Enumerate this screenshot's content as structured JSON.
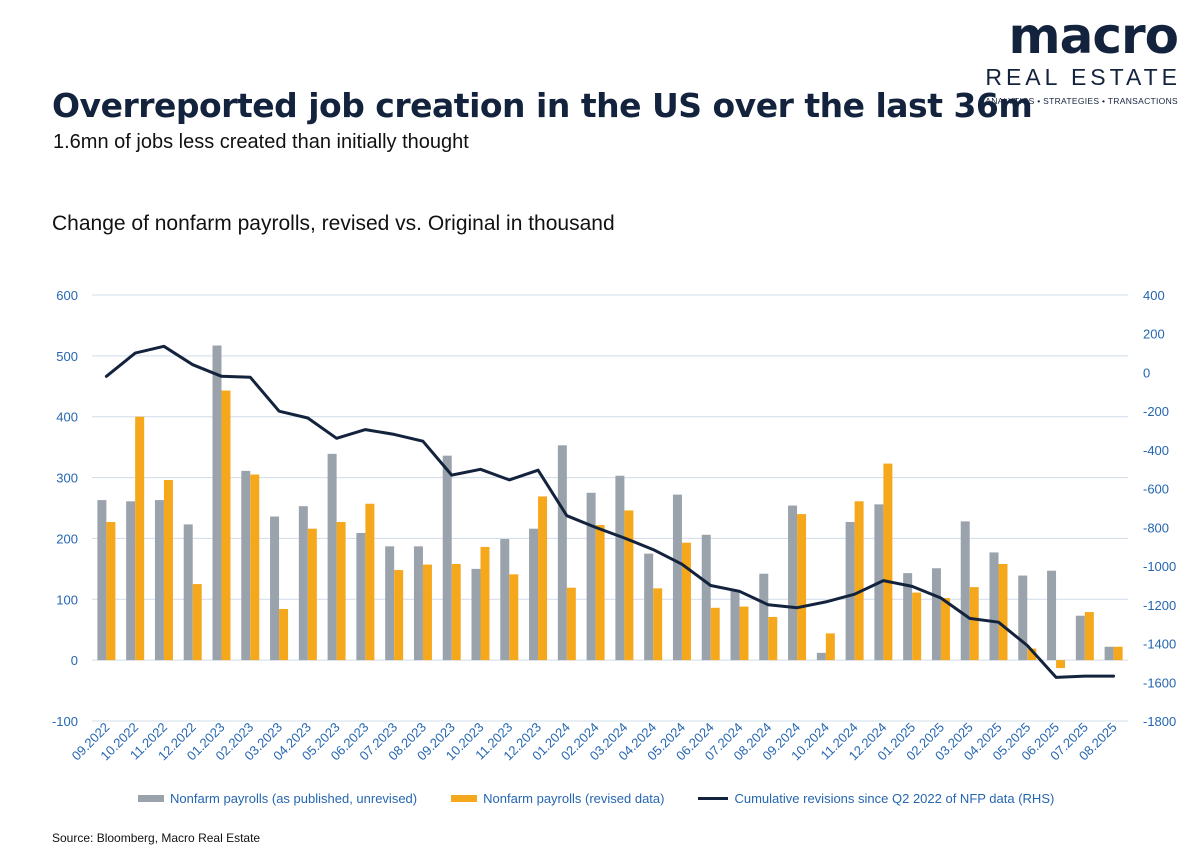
{
  "header": {
    "title": "Overreported job creation in the US over the last 36m",
    "subtitle": "1.6mn of jobs less created than initially thought",
    "chart_heading": "Change of nonfarm payrolls, revised vs. Original in thousand"
  },
  "logo": {
    "main": "macro",
    "sub": "REAL ESTATE",
    "tagline": "ANALYTICS • STRATEGIES • TRANSACTIONS"
  },
  "legend": {
    "unrevised": "Nonfarm payrolls (as published, unrevised)",
    "revised": "Nonfarm payrolls (revised data)",
    "cumulative": "Cumulative revisions since Q2 2022 of NFP data (RHS)"
  },
  "source": "Source: Bloomberg, Macro Real Estate",
  "colors": {
    "unrevised": "#9aa3ab",
    "revised": "#f5a81c",
    "cumulative": "#14233d",
    "axis_text": "#2566b0",
    "grid": "#cfdcea"
  },
  "chart_data": {
    "type": "bar",
    "categories": [
      "09.2022",
      "10.2022",
      "11.2022",
      "12.2022",
      "01.2023",
      "02.2023",
      "03.2023",
      "04.2023",
      "05.2023",
      "06.2023",
      "07.2023",
      "08.2023",
      "09.2023",
      "10.2023",
      "11.2023",
      "12.2023",
      "01.2024",
      "02.2024",
      "03.2024",
      "04.2024",
      "05.2024",
      "06.2024",
      "07.2024",
      "08.2024",
      "09.2024",
      "10.2024",
      "11.2024",
      "12.2024",
      "01.2025",
      "02.2025",
      "03.2025",
      "04.2025",
      "05.2025",
      "06.2025",
      "07.2025",
      "08.2025"
    ],
    "series": [
      {
        "name": "Nonfarm payrolls (as published, unrevised)",
        "type": "bar",
        "axis": "left",
        "values": [
          263,
          261,
          263,
          223,
          517,
          311,
          236,
          253,
          339,
          209,
          187,
          187,
          336,
          150,
          199,
          216,
          353,
          275,
          303,
          175,
          272,
          206,
          114,
          142,
          254,
          12,
          227,
          256,
          143,
          151,
          228,
          177,
          139,
          147,
          73,
          22
        ]
      },
      {
        "name": "Nonfarm payrolls (revised data)",
        "type": "bar",
        "axis": "left",
        "values": [
          227,
          400,
          296,
          125,
          443,
          305,
          84,
          216,
          227,
          257,
          148,
          157,
          158,
          186,
          141,
          269,
          119,
          222,
          246,
          118,
          193,
          86,
          88,
          71,
          240,
          44,
          261,
          323,
          111,
          102,
          120,
          158,
          19,
          -13,
          79,
          22
        ]
      },
      {
        "name": "Cumulative revisions since Q2 2022 of NFP data (RHS)",
        "type": "line",
        "axis": "right",
        "values": [
          -20,
          100,
          135,
          40,
          -20,
          -25,
          -200,
          -235,
          -340,
          -295,
          -320,
          -355,
          -530,
          -500,
          -555,
          -505,
          -740,
          -800,
          -855,
          -915,
          -990,
          -1100,
          -1130,
          -1200,
          -1215,
          -1185,
          -1145,
          -1075,
          -1105,
          -1165,
          -1270,
          -1290,
          -1410,
          -1575,
          -1568,
          -1568
        ]
      }
    ],
    "y_left": {
      "min": -100,
      "max": 600,
      "ticks": [
        -100,
        0,
        100,
        200,
        300,
        400,
        500,
        600
      ]
    },
    "y_right": {
      "min": -1800,
      "max": 400,
      "ticks": [
        -1800,
        -1600,
        -1400,
        -1200,
        -1000,
        -800,
        -600,
        -400,
        -200,
        0,
        200,
        400
      ]
    },
    "legend_position": "bottom"
  }
}
